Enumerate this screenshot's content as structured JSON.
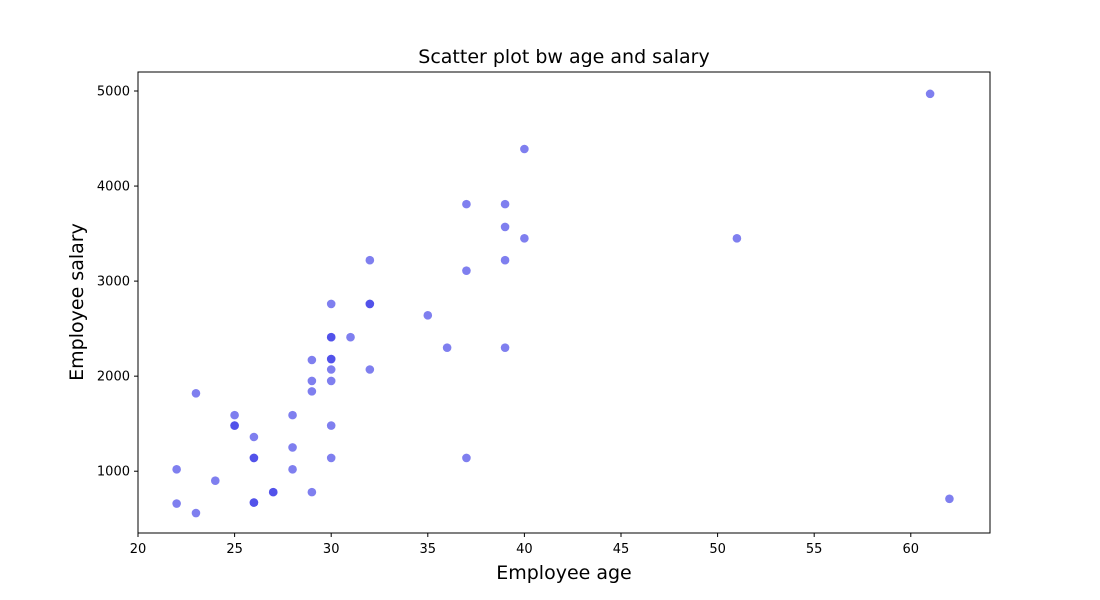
{
  "chart_data": {
    "type": "scatter",
    "title": "Scatter plot bw age and salary",
    "xlabel": "Employee age",
    "ylabel": "Employee salary",
    "xlim": [
      20,
      64.1
    ],
    "ylim": [
      350,
      5200
    ],
    "xticks": [
      20,
      25,
      30,
      35,
      40,
      45,
      50,
      55,
      60
    ],
    "yticks": [
      1000,
      2000,
      3000,
      4000,
      5000
    ],
    "grid": false,
    "marker_color": "#3b3be6",
    "marker_opacity": 0.65,
    "points": [
      {
        "x": 22,
        "y": 1020
      },
      {
        "x": 22,
        "y": 660
      },
      {
        "x": 23,
        "y": 1820
      },
      {
        "x": 23,
        "y": 560
      },
      {
        "x": 24,
        "y": 900
      },
      {
        "x": 25,
        "y": 1590
      },
      {
        "x": 25,
        "y": 1480
      },
      {
        "x": 25,
        "y": 1480
      },
      {
        "x": 26,
        "y": 1360
      },
      {
        "x": 26,
        "y": 1140
      },
      {
        "x": 26,
        "y": 1140
      },
      {
        "x": 26,
        "y": 670
      },
      {
        "x": 26,
        "y": 670
      },
      {
        "x": 27,
        "y": 780
      },
      {
        "x": 27,
        "y": 780
      },
      {
        "x": 28,
        "y": 1590
      },
      {
        "x": 28,
        "y": 1250
      },
      {
        "x": 28,
        "y": 1020
      },
      {
        "x": 29,
        "y": 2170
      },
      {
        "x": 29,
        "y": 1950
      },
      {
        "x": 29,
        "y": 1840
      },
      {
        "x": 29,
        "y": 780
      },
      {
        "x": 30,
        "y": 2760
      },
      {
        "x": 30,
        "y": 2410
      },
      {
        "x": 30,
        "y": 2410
      },
      {
        "x": 30,
        "y": 2180
      },
      {
        "x": 30,
        "y": 2180
      },
      {
        "x": 30,
        "y": 2070
      },
      {
        "x": 30,
        "y": 1950
      },
      {
        "x": 30,
        "y": 1480
      },
      {
        "x": 30,
        "y": 1140
      },
      {
        "x": 31,
        "y": 2410
      },
      {
        "x": 32,
        "y": 3220
      },
      {
        "x": 32,
        "y": 2760
      },
      {
        "x": 32,
        "y": 2760
      },
      {
        "x": 32,
        "y": 2070
      },
      {
        "x": 35,
        "y": 2640
      },
      {
        "x": 36,
        "y": 2300
      },
      {
        "x": 37,
        "y": 3810
      },
      {
        "x": 37,
        "y": 3110
      },
      {
        "x": 37,
        "y": 1140
      },
      {
        "x": 39,
        "y": 3810
      },
      {
        "x": 39,
        "y": 3570
      },
      {
        "x": 39,
        "y": 3220
      },
      {
        "x": 39,
        "y": 2300
      },
      {
        "x": 40,
        "y": 4390
      },
      {
        "x": 40,
        "y": 3450
      },
      {
        "x": 51,
        "y": 3450
      },
      {
        "x": 61,
        "y": 4970
      },
      {
        "x": 62,
        "y": 710
      }
    ]
  }
}
